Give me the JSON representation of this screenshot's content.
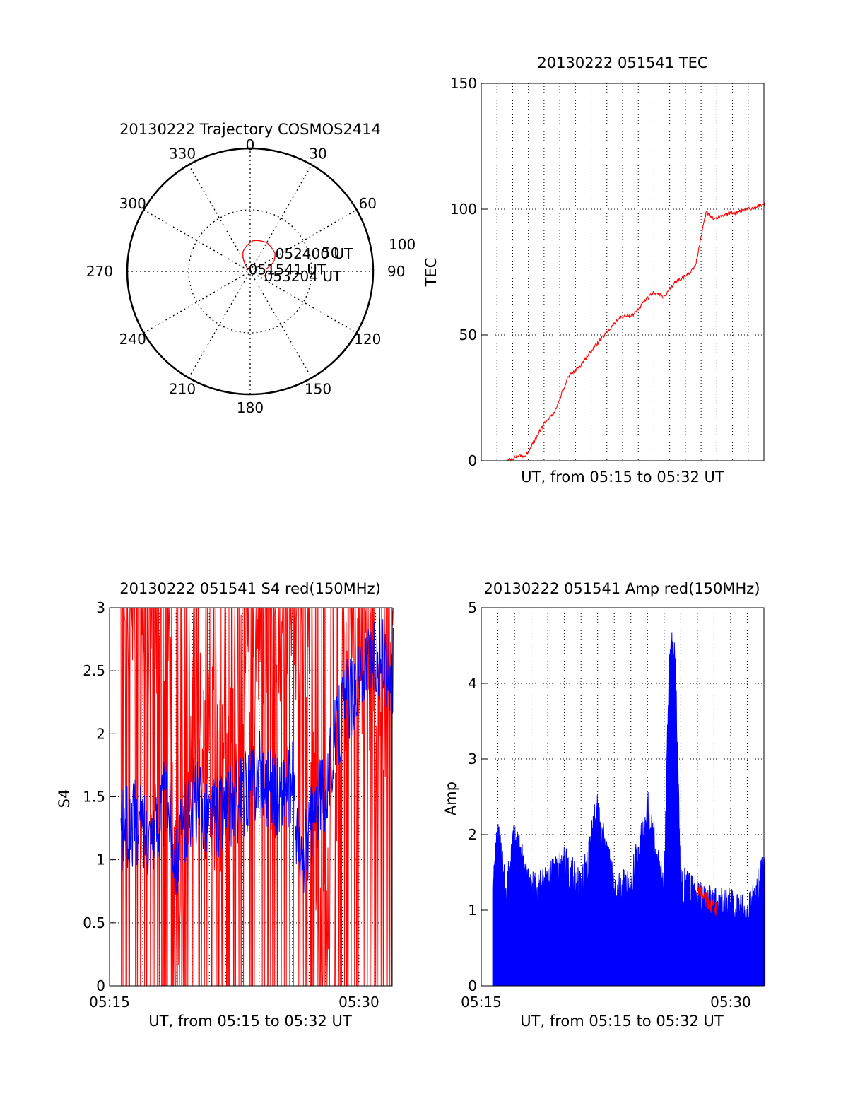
{
  "colors": {
    "red_series": "#ff0000",
    "blue_series": "#0000ff",
    "axis": "#000000",
    "grid": "#000000",
    "background": "#ffffff"
  },
  "chart_data": [
    {
      "type": "polar",
      "title": "20130222 Trajectory COSMOS2414",
      "azimuth_ticks": [
        "0",
        "30",
        "60",
        "90",
        "120",
        "150",
        "180",
        "210",
        "240",
        "270",
        "300",
        "330"
      ],
      "radial_ticks": [
        "50",
        "100"
      ],
      "rlim": [
        0,
        100
      ],
      "grid": true,
      "series": [
        {
          "color": "#ff0000",
          "points": [
            {
              "az": 316,
              "r": 98
            },
            {
              "az": 340,
              "r": 83
            },
            {
              "az": 5,
              "r": 75
            },
            {
              "az": 29,
              "r": 73
            },
            {
              "az": 54,
              "r": 75
            },
            {
              "az": 67,
              "r": 79
            },
            {
              "az": 81,
              "r": 87
            },
            {
              "az": 99,
              "r": 87
            },
            {
              "az": 110,
              "r": 88
            }
          ]
        }
      ],
      "annotations": [
        {
          "text": "051541 UT",
          "az": 316,
          "r": 98
        },
        {
          "text": "052400 UT",
          "az": 55,
          "r": 75
        },
        {
          "text": "053204 UT",
          "az": 110,
          "r": 88
        }
      ]
    },
    {
      "type": "line",
      "title": "20130222 051541 TEC",
      "xlabel": "UT, from 05:15 to 05:32 UT",
      "ylabel": "TEC",
      "xlim": [
        "05:14",
        "05:32"
      ],
      "ylim": [
        0,
        150
      ],
      "yticks": [
        0,
        50,
        100,
        150
      ],
      "grid": true,
      "series": [
        {
          "color": "#ff0000",
          "x": [
            "05:15:41",
            "05:16:20",
            "05:16:50",
            "05:17:30",
            "05:18:00",
            "05:18:40",
            "05:19:30",
            "05:20:20",
            "05:21:10",
            "05:22:00",
            "05:22:50",
            "05:23:40",
            "05:24:30",
            "05:25:00",
            "05:25:40",
            "05:26:20",
            "05:27:10",
            "05:27:40",
            "05:28:00",
            "05:28:20",
            "05:28:50",
            "05:29:30",
            "05:30:30",
            "05:31:30",
            "05:32:04"
          ],
          "values": [
            0,
            2,
            2,
            9,
            15,
            19,
            33,
            38,
            45,
            51,
            57,
            58,
            64,
            67,
            65,
            71,
            74,
            78,
            89,
            99,
            96,
            98,
            99,
            101,
            102
          ]
        }
      ]
    },
    {
      "type": "line",
      "title": "20130222 051541 S4 red(150MHz)",
      "xlabel": "UT, from 05:15 to 05:32 UT",
      "ylabel": "S4",
      "xlim": [
        "05:15",
        "05:32"
      ],
      "ylim": [
        0,
        3
      ],
      "xticks": [
        "05:15",
        "05:30"
      ],
      "yticks": [
        "0",
        "0.5",
        "1",
        "1.5",
        "2",
        "2.5",
        "3"
      ],
      "grid": true,
      "series": [
        {
          "color": "#ff0000",
          "x": [
            "05:15:41",
            "05:17:00",
            "05:18:30",
            "05:19:00",
            "05:20:00",
            "05:22:00",
            "05:24:00",
            "05:26:00",
            "05:27:00",
            "05:27:30",
            "05:28:00",
            "05:28:30",
            "05:29:00",
            "05:30:00",
            "05:31:00",
            "05:32:04"
          ],
          "values": [
            3,
            3,
            3,
            0.3,
            2.1,
            1.5,
            3,
            3,
            3,
            0.3,
            0.25,
            1.6,
            2.5,
            3,
            1.8,
            3
          ]
        },
        {
          "color": "#0000ff",
          "x": [
            "05:15:41",
            "05:16:30",
            "05:17:30",
            "05:18:30",
            "05:19:00",
            "05:20:00",
            "05:21:00",
            "05:22:00",
            "05:23:00",
            "05:24:00",
            "05:25:00",
            "05:26:00",
            "05:26:30",
            "05:27:00",
            "05:28:00",
            "05:29:00",
            "05:30:00",
            "05:31:00",
            "05:32:04"
          ],
          "values": [
            1.2,
            1.3,
            1.2,
            1.5,
            1.0,
            1.5,
            1.3,
            1.4,
            1.5,
            1.7,
            1.5,
            1.6,
            0.9,
            1.2,
            1.6,
            2.2,
            2.4,
            2.6,
            2.5
          ]
        }
      ]
    },
    {
      "type": "line",
      "title": "20130222 051541 Amp red(150MHz)",
      "xlabel": "UT, from 05:15 to 05:32 UT",
      "ylabel": "Amp",
      "xlim": [
        "05:15",
        "05:32"
      ],
      "ylim": [
        0,
        5
      ],
      "xticks": [
        "05:15",
        "05:30"
      ],
      "yticks": [
        0,
        1,
        2,
        3,
        4,
        5
      ],
      "grid": true,
      "series": [
        {
          "color": "#0000ff",
          "x": [
            "05:15:41",
            "05:16:00",
            "05:16:30",
            "05:17:00",
            "05:18:00",
            "05:19:00",
            "05:20:00",
            "05:21:00",
            "05:22:00",
            "05:23:00",
            "05:24:00",
            "05:25:00",
            "05:26:00",
            "05:26:20",
            "05:26:40",
            "05:27:00",
            "05:28:00",
            "05:29:00",
            "05:30:00",
            "05:31:00",
            "05:32:04"
          ],
          "values": [
            1.7,
            2.3,
            1.5,
            2.2,
            1.5,
            1.6,
            1.9,
            1.5,
            2.6,
            1.5,
            1.6,
            2.6,
            1.5,
            4.8,
            4.5,
            1.6,
            1.4,
            1.3,
            1.3,
            1.2,
            1.8
          ]
        },
        {
          "color": "#ff0000",
          "x": [
            "05:28:00",
            "05:28:40",
            "05:29:10"
          ],
          "values": [
            1.3,
            1.1,
            1.0
          ]
        }
      ]
    }
  ]
}
